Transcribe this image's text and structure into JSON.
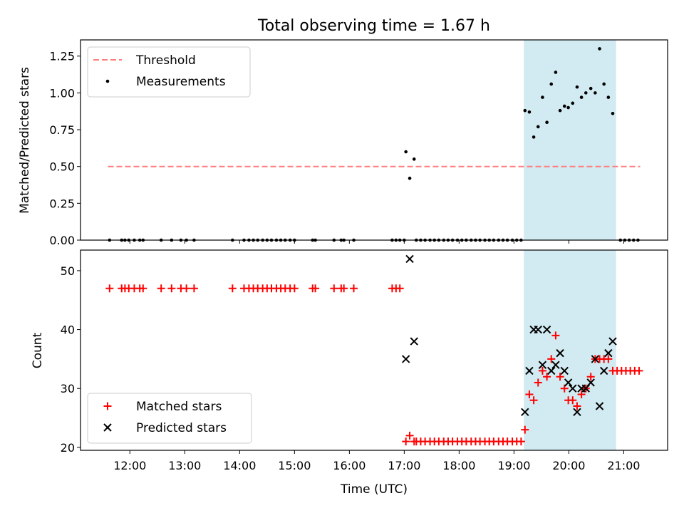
{
  "chart_data": {
    "title": "Total observing time = 1.67 h",
    "xlabel": "Time (UTC)",
    "x_unit": "hours UTC",
    "xlim": [
      11.1,
      21.8
    ],
    "x_ticks": [
      {
        "value": 12,
        "label": "12:00"
      },
      {
        "value": 13,
        "label": "13:00"
      },
      {
        "value": 14,
        "label": "14:00"
      },
      {
        "value": 15,
        "label": "15:00"
      },
      {
        "value": 16,
        "label": "16:00"
      },
      {
        "value": 17,
        "label": "17:00"
      },
      {
        "value": 18,
        "label": "18:00"
      },
      {
        "value": 19,
        "label": "19:00"
      },
      {
        "value": 20,
        "label": "20:00"
      },
      {
        "value": 21,
        "label": "21:00"
      }
    ],
    "shaded_interval": {
      "x0": 19.18,
      "x1": 20.86,
      "color": "#add8e6"
    },
    "panels": [
      {
        "id": "ratio",
        "type": "scatter",
        "ylabel": "Matched/Predicted stars",
        "ylim": [
          0,
          1.36
        ],
        "y_ticks": [
          {
            "value": 0.0,
            "label": "0.00"
          },
          {
            "value": 0.25,
            "label": "0.25"
          },
          {
            "value": 0.5,
            "label": "0.50"
          },
          {
            "value": 0.75,
            "label": "0.75"
          },
          {
            "value": 1.0,
            "label": "1.00"
          },
          {
            "value": 1.25,
            "label": "1.25"
          }
        ],
        "legend": {
          "location": "upper left",
          "entries": [
            {
              "label": "Threshold",
              "style": "dashed-line",
              "color": "#ff7f7f"
            },
            {
              "label": "Measurements",
              "style": "dot",
              "color": "#000000"
            }
          ]
        },
        "threshold": {
          "value": 0.5,
          "x_start": 11.6,
          "x_end": 21.3,
          "color": "#ff7f7f"
        },
        "series": [
          {
            "name": "Measurements",
            "marker": "dot",
            "color": "#000000",
            "points": [
              [
                11.63,
                0
              ],
              [
                11.85,
                0
              ],
              [
                11.91,
                0
              ],
              [
                11.98,
                0
              ],
              [
                12.08,
                0
              ],
              [
                12.18,
                0
              ],
              [
                12.24,
                0
              ],
              [
                12.57,
                0
              ],
              [
                12.76,
                0
              ],
              [
                12.93,
                0
              ],
              [
                13.03,
                0
              ],
              [
                13.17,
                0
              ],
              [
                13.87,
                0
              ],
              [
                14.08,
                0
              ],
              [
                14.17,
                0
              ],
              [
                14.25,
                0
              ],
              [
                14.33,
                0
              ],
              [
                14.42,
                0
              ],
              [
                14.5,
                0
              ],
              [
                14.58,
                0
              ],
              [
                14.67,
                0
              ],
              [
                14.75,
                0
              ],
              [
                14.83,
                0
              ],
              [
                14.92,
                0
              ],
              [
                15.0,
                0
              ],
              [
                15.33,
                0
              ],
              [
                15.38,
                0
              ],
              [
                15.72,
                0
              ],
              [
                15.85,
                0
              ],
              [
                15.9,
                0
              ],
              [
                16.08,
                0
              ],
              [
                16.78,
                0
              ],
              [
                16.85,
                0
              ],
              [
                16.92,
                0
              ],
              [
                17.0,
                0
              ],
              [
                17.03,
                0.6
              ],
              [
                17.1,
                0.42
              ],
              [
                17.18,
                0.55
              ],
              [
                17.22,
                0
              ],
              [
                17.3,
                0
              ],
              [
                17.38,
                0
              ],
              [
                17.47,
                0
              ],
              [
                17.55,
                0
              ],
              [
                17.63,
                0
              ],
              [
                17.72,
                0
              ],
              [
                17.8,
                0
              ],
              [
                17.88,
                0
              ],
              [
                17.97,
                0
              ],
              [
                18.05,
                0
              ],
              [
                18.13,
                0
              ],
              [
                18.22,
                0
              ],
              [
                18.3,
                0
              ],
              [
                18.38,
                0
              ],
              [
                18.47,
                0
              ],
              [
                18.55,
                0
              ],
              [
                18.63,
                0
              ],
              [
                18.72,
                0
              ],
              [
                18.8,
                0
              ],
              [
                18.88,
                0
              ],
              [
                18.97,
                0
              ],
              [
                19.05,
                0
              ],
              [
                19.13,
                0
              ],
              [
                19.2,
                0.88
              ],
              [
                19.28,
                0.87
              ],
              [
                19.36,
                0.7
              ],
              [
                19.44,
                0.77
              ],
              [
                19.52,
                0.97
              ],
              [
                19.6,
                0.8
              ],
              [
                19.68,
                1.06
              ],
              [
                19.76,
                1.14
              ],
              [
                19.84,
                0.88
              ],
              [
                19.92,
                0.91
              ],
              [
                19.99,
                0.9
              ],
              [
                20.07,
                0.93
              ],
              [
                20.15,
                1.04
              ],
              [
                20.23,
                0.97
              ],
              [
                20.31,
                1.0
              ],
              [
                20.4,
                1.03
              ],
              [
                20.48,
                1.0
              ],
              [
                20.56,
                1.3
              ],
              [
                20.64,
                1.06
              ],
              [
                20.72,
                0.97
              ],
              [
                20.8,
                0.86
              ],
              [
                20.94,
                0
              ],
              [
                21.02,
                0
              ],
              [
                21.1,
                0
              ],
              [
                21.18,
                0
              ],
              [
                21.26,
                0
              ]
            ]
          }
        ]
      },
      {
        "id": "counts",
        "type": "scatter",
        "ylabel": "Count",
        "ylim": [
          19.5,
          53.5
        ],
        "y_ticks": [
          {
            "value": 20,
            "label": "20"
          },
          {
            "value": 30,
            "label": "30"
          },
          {
            "value": 40,
            "label": "40"
          },
          {
            "value": 50,
            "label": "50"
          }
        ],
        "legend": {
          "location": "lower left",
          "entries": [
            {
              "label": "Matched stars",
              "style": "plus",
              "color": "#ff0000"
            },
            {
              "label": "Predicted stars",
              "style": "cross",
              "color": "#000000"
            }
          ]
        },
        "series": [
          {
            "name": "Matched stars",
            "marker": "plus",
            "color": "#ff0000",
            "points": [
              [
                11.63,
                47
              ],
              [
                11.85,
                47
              ],
              [
                11.91,
                47
              ],
              [
                11.98,
                47
              ],
              [
                12.08,
                47
              ],
              [
                12.18,
                47
              ],
              [
                12.24,
                47
              ],
              [
                12.57,
                47
              ],
              [
                12.76,
                47
              ],
              [
                12.93,
                47
              ],
              [
                13.03,
                47
              ],
              [
                13.17,
                47
              ],
              [
                13.87,
                47
              ],
              [
                14.08,
                47
              ],
              [
                14.17,
                47
              ],
              [
                14.25,
                47
              ],
              [
                14.33,
                47
              ],
              [
                14.42,
                47
              ],
              [
                14.5,
                47
              ],
              [
                14.58,
                47
              ],
              [
                14.67,
                47
              ],
              [
                14.75,
                47
              ],
              [
                14.83,
                47
              ],
              [
                14.92,
                47
              ],
              [
                15.0,
                47
              ],
              [
                15.33,
                47
              ],
              [
                15.38,
                47
              ],
              [
                15.72,
                47
              ],
              [
                15.85,
                47
              ],
              [
                15.9,
                47
              ],
              [
                16.08,
                47
              ],
              [
                16.78,
                47
              ],
              [
                16.85,
                47
              ],
              [
                16.92,
                47
              ],
              [
                17.03,
                21
              ],
              [
                17.1,
                22
              ],
              [
                17.18,
                21
              ],
              [
                17.22,
                21
              ],
              [
                17.3,
                21
              ],
              [
                17.38,
                21
              ],
              [
                17.47,
                21
              ],
              [
                17.55,
                21
              ],
              [
                17.63,
                21
              ],
              [
                17.72,
                21
              ],
              [
                17.8,
                21
              ],
              [
                17.88,
                21
              ],
              [
                17.97,
                21
              ],
              [
                18.05,
                21
              ],
              [
                18.13,
                21
              ],
              [
                18.22,
                21
              ],
              [
                18.3,
                21
              ],
              [
                18.38,
                21
              ],
              [
                18.47,
                21
              ],
              [
                18.55,
                21
              ],
              [
                18.63,
                21
              ],
              [
                18.72,
                21
              ],
              [
                18.8,
                21
              ],
              [
                18.88,
                21
              ],
              [
                18.97,
                21
              ],
              [
                19.05,
                21
              ],
              [
                19.13,
                21
              ],
              [
                19.2,
                23
              ],
              [
                19.28,
                29
              ],
              [
                19.36,
                28
              ],
              [
                19.44,
                31
              ],
              [
                19.52,
                33
              ],
              [
                19.6,
                32
              ],
              [
                19.68,
                35
              ],
              [
                19.76,
                39
              ],
              [
                19.84,
                32
              ],
              [
                19.92,
                30
              ],
              [
                19.99,
                28
              ],
              [
                20.07,
                28
              ],
              [
                20.15,
                27
              ],
              [
                20.23,
                29
              ],
              [
                20.31,
                30
              ],
              [
                20.4,
                32
              ],
              [
                20.48,
                35
              ],
              [
                20.56,
                35
              ],
              [
                20.64,
                35
              ],
              [
                20.72,
                35
              ],
              [
                20.8,
                33
              ],
              [
                20.88,
                33
              ],
              [
                20.96,
                33
              ],
              [
                21.04,
                33
              ],
              [
                21.12,
                33
              ],
              [
                21.2,
                33
              ],
              [
                21.28,
                33
              ]
            ]
          },
          {
            "name": "Predicted stars",
            "marker": "cross",
            "color": "#000000",
            "points": [
              [
                17.03,
                35
              ],
              [
                17.1,
                52
              ],
              [
                17.18,
                38
              ],
              [
                19.2,
                26
              ],
              [
                19.28,
                33
              ],
              [
                19.36,
                40
              ],
              [
                19.44,
                40
              ],
              [
                19.52,
                34
              ],
              [
                19.6,
                40
              ],
              [
                19.68,
                33
              ],
              [
                19.76,
                34
              ],
              [
                19.84,
                36
              ],
              [
                19.92,
                33
              ],
              [
                19.99,
                31
              ],
              [
                20.07,
                30
              ],
              [
                20.15,
                26
              ],
              [
                20.23,
                30
              ],
              [
                20.31,
                30
              ],
              [
                20.4,
                31
              ],
              [
                20.48,
                35
              ],
              [
                20.56,
                27
              ],
              [
                20.64,
                33
              ],
              [
                20.72,
                36
              ],
              [
                20.8,
                38
              ]
            ]
          }
        ]
      }
    ]
  }
}
